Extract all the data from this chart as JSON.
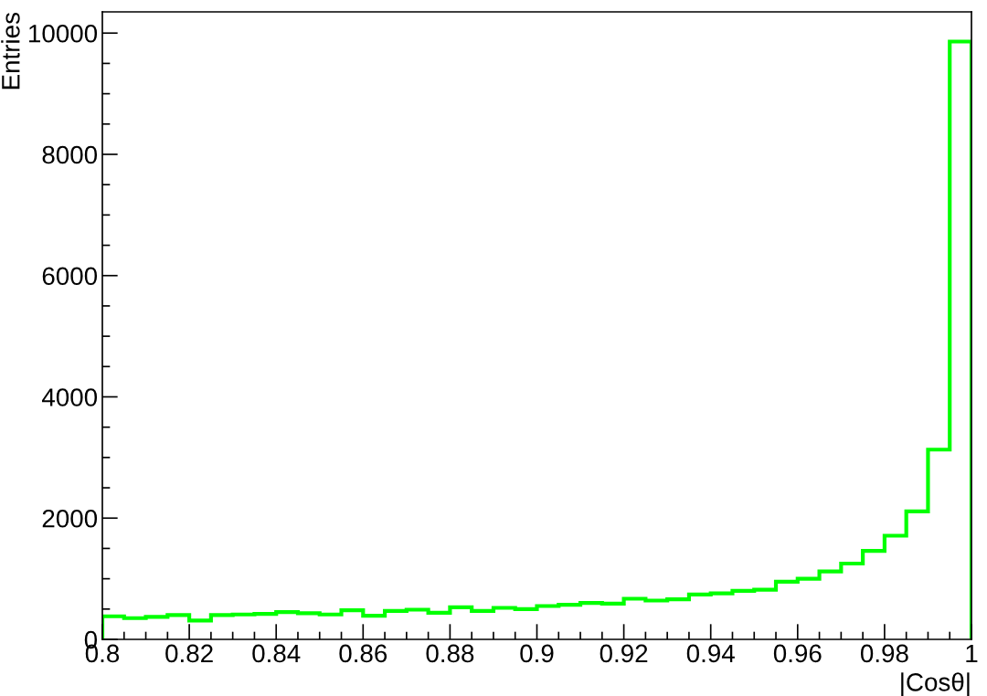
{
  "chart_data": {
    "type": "histogram",
    "xlabel": "|Cosθ|",
    "ylabel": "Entries",
    "color": "#00ff00",
    "bins": [
      0.8,
      0.805,
      0.81,
      0.815,
      0.82,
      0.825,
      0.83,
      0.835,
      0.84,
      0.845,
      0.85,
      0.855,
      0.86,
      0.865,
      0.87,
      0.875,
      0.88,
      0.885,
      0.89,
      0.895,
      0.9,
      0.905,
      0.91,
      0.915,
      0.92,
      0.925,
      0.93,
      0.935,
      0.94,
      0.945,
      0.95,
      0.955,
      0.96,
      0.965,
      0.97,
      0.975,
      0.98,
      0.985,
      0.99,
      0.995,
      1.0
    ],
    "values": [
      380,
      350,
      370,
      400,
      310,
      400,
      410,
      420,
      450,
      430,
      410,
      480,
      390,
      470,
      490,
      440,
      530,
      470,
      520,
      500,
      550,
      570,
      600,
      590,
      670,
      640,
      660,
      740,
      760,
      800,
      820,
      950,
      1000,
      1120,
      1250,
      1460,
      1710,
      2110,
      3130,
      9860
    ],
    "xlim": [
      0.8,
      1.0
    ],
    "xticks": [
      {
        "value": 0.8,
        "label": "0.8"
      },
      {
        "value": 0.82,
        "label": "0.82"
      },
      {
        "value": 0.84,
        "label": "0.84"
      },
      {
        "value": 0.86,
        "label": "0.86"
      },
      {
        "value": 0.88,
        "label": "0.88"
      },
      {
        "value": 0.9,
        "label": "0.9"
      },
      {
        "value": 0.92,
        "label": "0.92"
      },
      {
        "value": 0.94,
        "label": "0.94"
      },
      {
        "value": 0.96,
        "label": "0.96"
      },
      {
        "value": 0.98,
        "label": "0.98"
      },
      {
        "value": 1.0,
        "label": "1"
      }
    ],
    "ylim": [
      0,
      10350
    ],
    "yticks": [
      0,
      2000,
      4000,
      6000,
      8000,
      10000
    ],
    "grid": false
  }
}
